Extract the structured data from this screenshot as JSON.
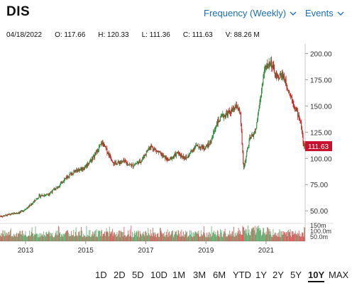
{
  "ticker": "DIS",
  "controls": {
    "frequency": "Frequency (Weekly)",
    "events": "Events"
  },
  "quote": {
    "date": "04/18/2022",
    "open_label": "O:",
    "open": "117.66",
    "high_label": "H:",
    "high": "120.33",
    "low_label": "L:",
    "low": "111.36",
    "close_label": "C:",
    "close": "111.63",
    "volume_label": "V:",
    "volume": "88.26 M"
  },
  "last_price_label": "111.63",
  "colors": {
    "up": "#2e8b3a",
    "down": "#cc1f1f",
    "accent": "#1a6fba",
    "last_price_badge": "#c8102e"
  },
  "ranges": [
    "1D",
    "2D",
    "5D",
    "10D",
    "1M",
    "3M",
    "6M",
    "YTD",
    "1Y",
    "2Y",
    "5Y",
    "10Y",
    "MAX"
  ],
  "active_range": "10Y",
  "chart_data": {
    "type": "candlestick",
    "price_axis_ticks": [
      "200.00",
      "175.00",
      "150.00",
      "125.00",
      "100.00",
      "75.00",
      "50.00"
    ],
    "volume_axis_ticks": [
      "150m",
      "100.0m",
      "50.0m"
    ],
    "x_tick_labels": [
      "2013",
      "2015",
      "2017",
      "2019",
      "2021"
    ],
    "ylim": [
      40,
      205
    ],
    "close_series": {
      "x": [
        2012.3,
        2012.6,
        2012.9,
        2013.2,
        2013.5,
        2013.8,
        2014.1,
        2014.4,
        2014.7,
        2015.0,
        2015.3,
        2015.6,
        2015.8,
        2016.0,
        2016.3,
        2016.6,
        2016.9,
        2017.2,
        2017.5,
        2017.8,
        2018.1,
        2018.4,
        2018.7,
        2019.0,
        2019.2,
        2019.4,
        2019.6,
        2019.9,
        2020.1,
        2020.2,
        2020.3,
        2020.5,
        2020.7,
        2020.9,
        2021.0,
        2021.2,
        2021.4,
        2021.6,
        2021.8,
        2022.0,
        2022.2,
        2022.3
      ],
      "y": [
        45,
        47,
        49,
        55,
        64,
        66,
        72,
        82,
        88,
        91,
        101,
        115,
        105,
        95,
        97,
        93,
        98,
        112,
        105,
        98,
        105,
        100,
        112,
        110,
        115,
        133,
        140,
        145,
        150,
        140,
        90,
        118,
        126,
        165,
        185,
        192,
        177,
        180,
        165,
        150,
        135,
        112
      ]
    }
  }
}
